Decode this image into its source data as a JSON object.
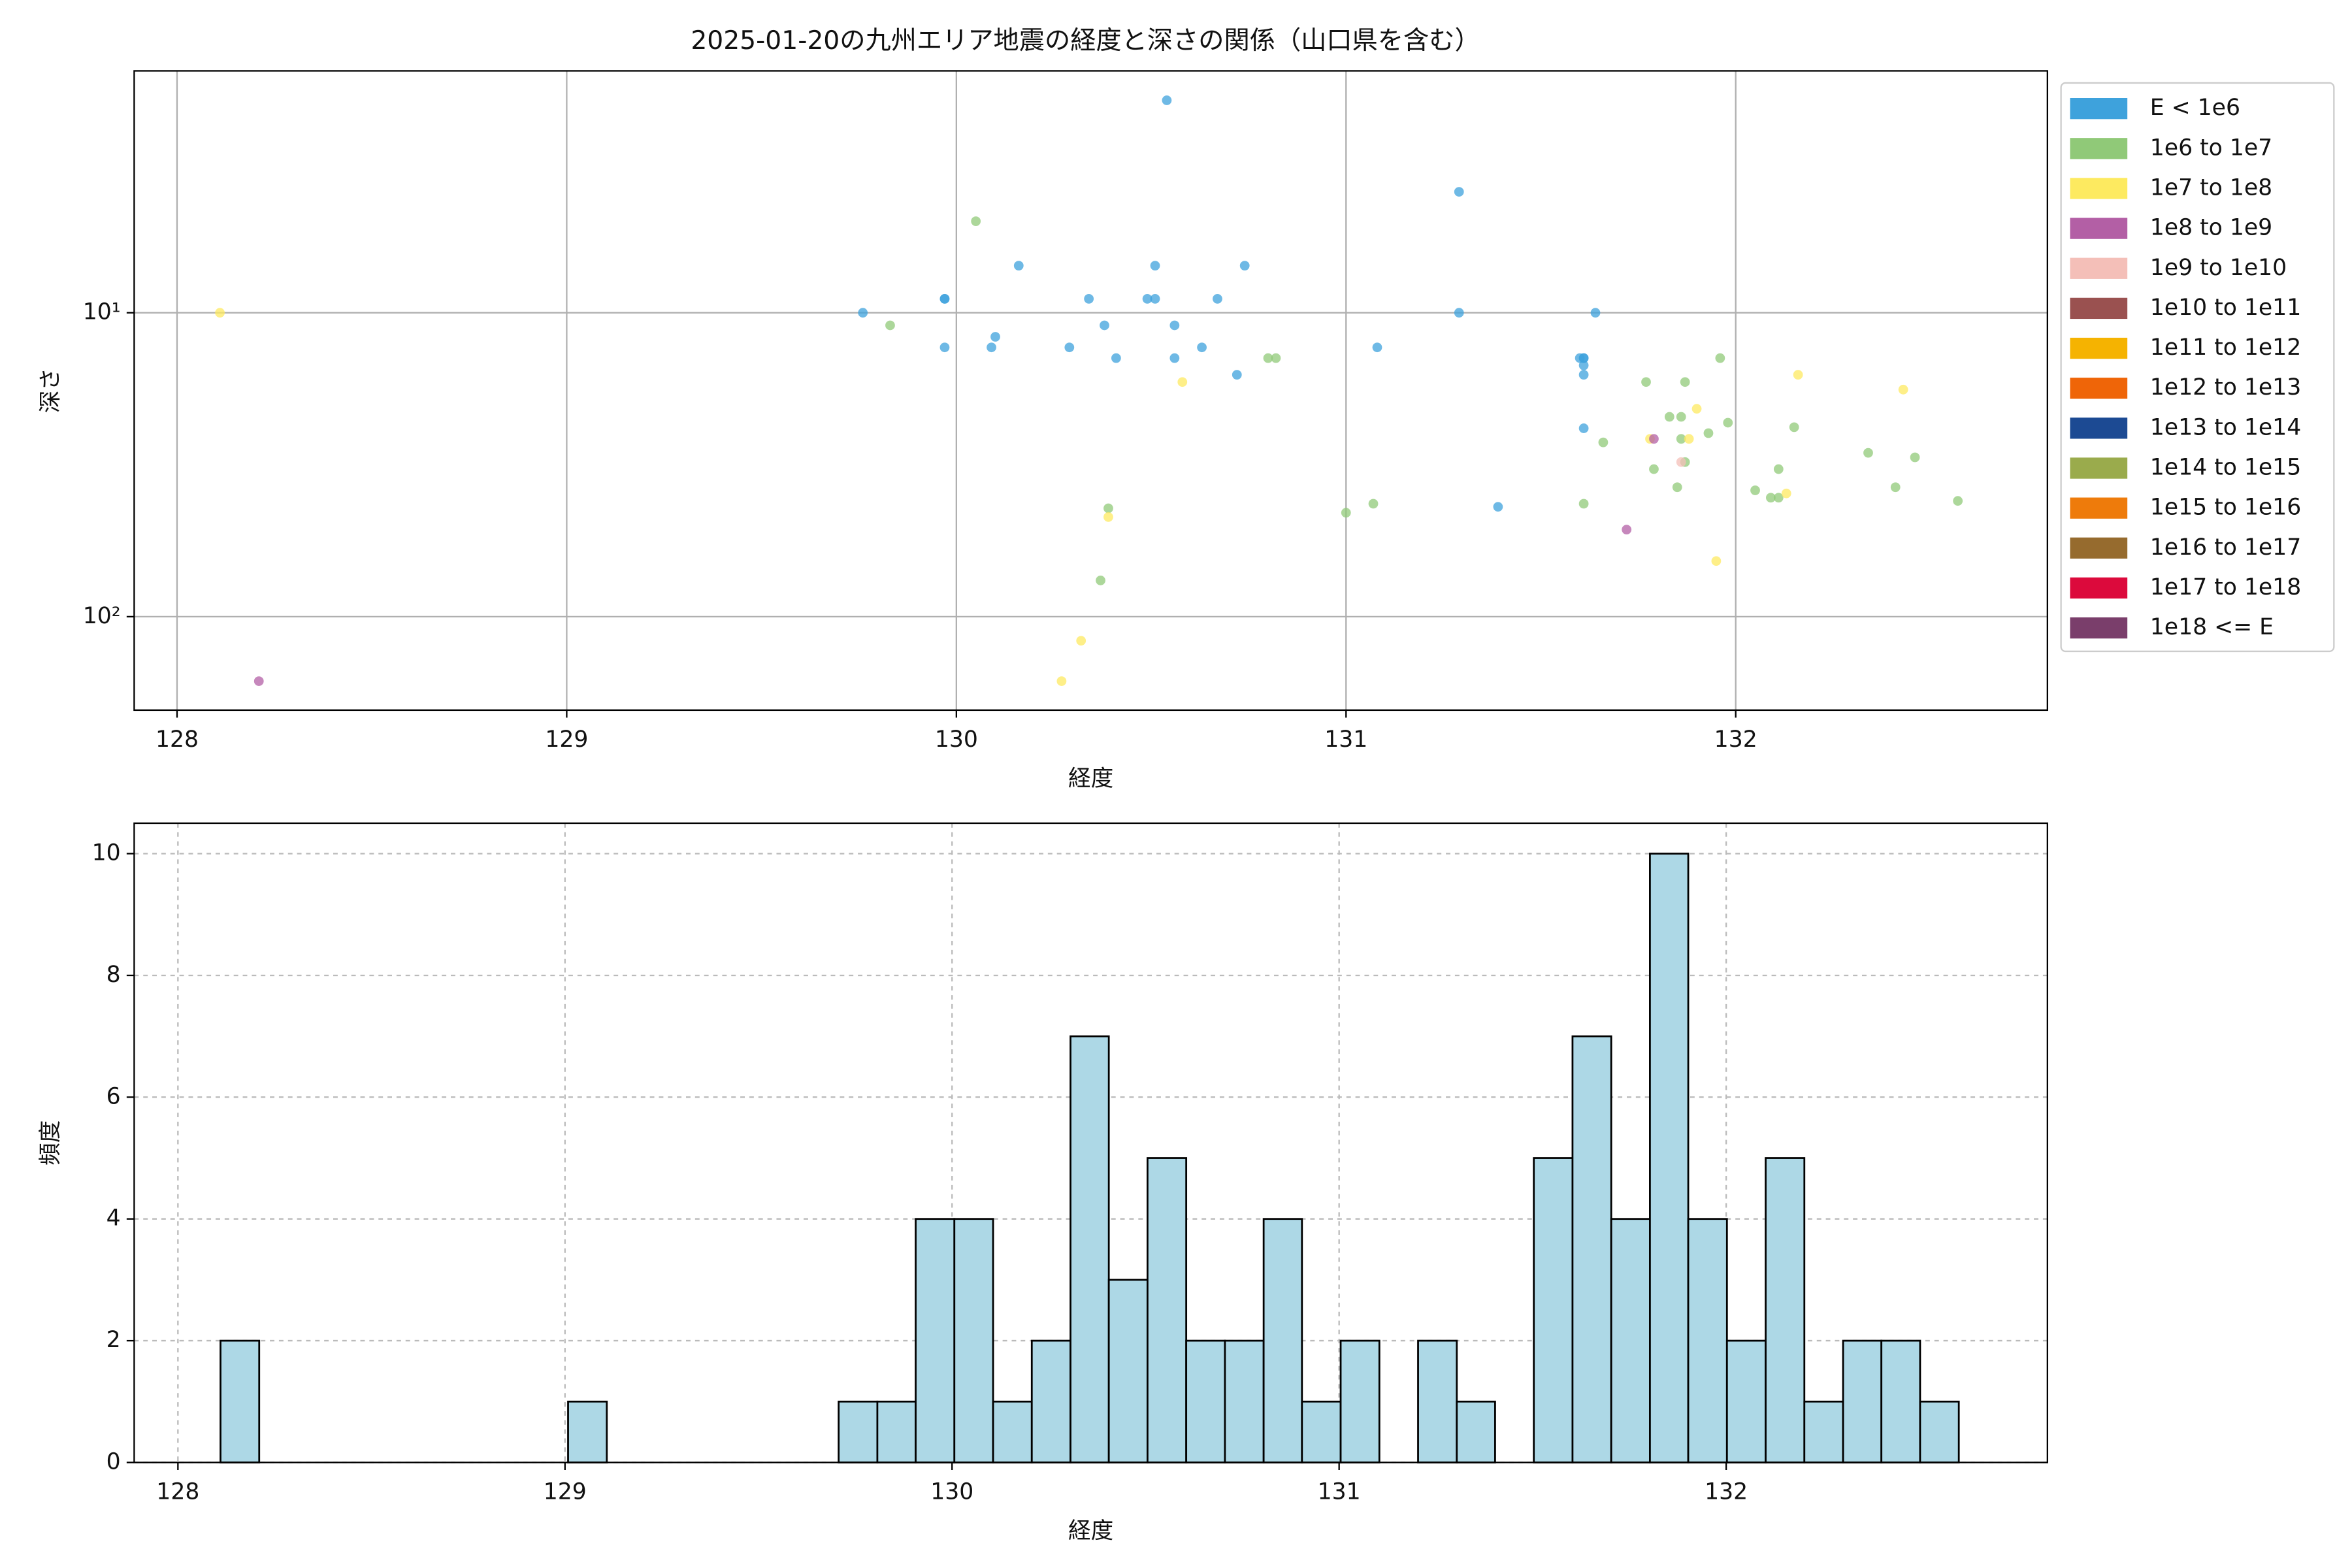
{
  "chart_data": [
    {
      "type": "scatter",
      "title": "2025-01-20の九州エリア地震の経度と深さの関係（山口県を含む）",
      "x_label": "経度",
      "y_label": "深さ",
      "xlim": [
        127.89,
        132.8
      ],
      "xticks": [
        128,
        129,
        130,
        131,
        132
      ],
      "yscale": "log",
      "ylim": [
        203,
        1.6
      ],
      "yticks": [
        {
          "value": 10,
          "label": "10¹"
        },
        {
          "value": 100,
          "label": "10²"
        }
      ],
      "grid": true,
      "legend": "outside upper right",
      "series": [
        {
          "name": "E < 1e6",
          "color": "#3ea2dc",
          "x": [
            129.76,
            129.97,
            129.97,
            129.97,
            130.1,
            130.09,
            130.16,
            130.29,
            130.34,
            130.38,
            130.41,
            130.49,
            130.51,
            130.51,
            130.56,
            130.56,
            130.63,
            130.67,
            130.72,
            130.74,
            130.54,
            131.08,
            131.29,
            131.29,
            131.39,
            131.6,
            131.61,
            131.61,
            131.61,
            131.61,
            131.61,
            131.64
          ],
          "values": [
            10,
            9.0,
            9.0,
            13,
            12,
            13,
            7.0,
            13,
            9.0,
            11,
            14.1,
            9.0,
            9.0,
            7.0,
            11,
            14.1,
            13,
            9.0,
            16,
            7.0,
            2.0,
            13,
            4.0,
            10,
            43.5,
            14.1,
            14.1,
            14.9,
            16,
            14.1,
            24,
            10
          ]
        },
        {
          "name": "1e6 to 1e7",
          "color": "#90c978",
          "x": [
            129.83,
            130.05,
            130.39,
            130.37,
            130.8,
            130.82,
            131.0,
            131.07,
            131.61,
            131.66,
            131.77,
            131.79,
            131.83,
            131.86,
            131.86,
            131.87,
            131.87,
            131.85,
            131.93,
            131.96,
            131.98,
            132.05,
            132.09,
            132.11,
            132.11,
            132.15,
            132.34,
            132.41,
            132.46,
            132.57
          ],
          "values": [
            11,
            5.0,
            44,
            76,
            14.1,
            14.1,
            45.5,
            42.5,
            42.5,
            26.7,
            16.9,
            32.7,
            22,
            22,
            26,
            16.9,
            31,
            37.5,
            24.9,
            14.1,
            23,
            38.4,
            40.6,
            40.6,
            32.7,
            23.8,
            28.9,
            37.5,
            29.9,
            41.6
          ]
        },
        {
          "name": "1e7 to 1e8",
          "color": "#fdea60",
          "x": [
            128.11,
            130.58,
            130.39,
            130.32,
            130.27,
            131.78,
            131.9,
            131.88,
            132.13,
            132.16,
            132.43,
            131.95
          ],
          "values": [
            10,
            16.9,
            47,
            120,
            163,
            26,
            20.7,
            26,
            39.3,
            16,
            17.9,
            65.6
          ]
        },
        {
          "name": "1e8 to 1e9",
          "color": "#b35fa5",
          "x": [
            128.21,
            131.79,
            131.72
          ],
          "values": [
            163,
            26,
            51.7
          ]
        },
        {
          "name": "1e9 to 1e10",
          "color": "#f4bfb8",
          "x": [
            131.86
          ],
          "values": [
            31
          ]
        },
        {
          "name": "1e10 to 1e11",
          "color": "#9a5150",
          "x": [],
          "values": []
        },
        {
          "name": "1e11 to 1e12",
          "color": "#f5b301",
          "x": [],
          "values": []
        },
        {
          "name": "1e12 to 1e13",
          "color": "#ef6508",
          "x": [],
          "values": []
        },
        {
          "name": "1e13 to 1e14",
          "color": "#1c4a93",
          "x": [],
          "values": []
        },
        {
          "name": "1e14 to 1e15",
          "color": "#9aab4c",
          "x": [],
          "values": []
        },
        {
          "name": "1e15 to 1e16",
          "color": "#ee7b0b",
          "x": [],
          "values": []
        },
        {
          "name": "1e16 to 1e17",
          "color": "#966b2e",
          "x": [],
          "values": []
        },
        {
          "name": "1e17 to 1e18",
          "color": "#dc0a3c",
          "x": [],
          "values": []
        },
        {
          "name": "1e18 <= E",
          "color": "#7a3e6b",
          "x": [],
          "values": []
        }
      ]
    },
    {
      "type": "histogram",
      "x_label": "経度",
      "y_label": "頻度",
      "xlim": [
        127.887,
        132.83
      ],
      "xticks": [
        128,
        129,
        130,
        131,
        132
      ],
      "ylim": [
        0,
        10.5
      ],
      "yticks": [
        0,
        2,
        4,
        6,
        8,
        10
      ],
      "grid": true,
      "color": "#add8e6",
      "edgecolor": "#000000",
      "bins": [
        128.11,
        128.21,
        128.31,
        128.409,
        128.509,
        128.609,
        128.709,
        128.809,
        128.908,
        129.008,
        129.108,
        129.208,
        129.308,
        129.407,
        129.507,
        129.607,
        129.707,
        129.807,
        129.906,
        130.006,
        130.106,
        130.206,
        130.306,
        130.405,
        130.505,
        130.605,
        130.705,
        130.805,
        130.904,
        131.004,
        131.104,
        131.204,
        131.304,
        131.403,
        131.503,
        131.603,
        131.703,
        131.803,
        131.902,
        132.002,
        132.102,
        132.202,
        132.302,
        132.401,
        132.501,
        132.601
      ],
      "counts": [
        2,
        0,
        0,
        0,
        0,
        0,
        0,
        0,
        0,
        1,
        0,
        0,
        0,
        0,
        0,
        0,
        1,
        1,
        4,
        4,
        1,
        2,
        7,
        3,
        5,
        2,
        2,
        4,
        1,
        2,
        0,
        2,
        1,
        0,
        5,
        7,
        4,
        10,
        4,
        2,
        5,
        1,
        2,
        2,
        1
      ]
    }
  ]
}
